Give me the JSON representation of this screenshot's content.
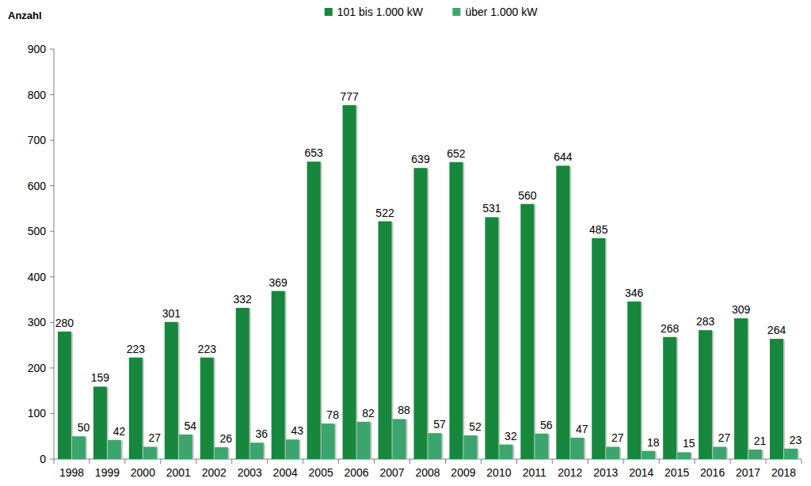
{
  "chart_data": {
    "type": "bar",
    "y_label": "Anzahl",
    "categories": [
      "1998",
      "1999",
      "2000",
      "2001",
      "2002",
      "2003",
      "2004",
      "2005",
      "2006",
      "2007",
      "2008",
      "2009",
      "2010",
      "2011",
      "2012",
      "2013",
      "2014",
      "2015",
      "2016",
      "2017",
      "2018"
    ],
    "series": [
      {
        "name": "101 bis 1.000 kW",
        "color": "#17873d",
        "values": [
          280,
          159,
          223,
          301,
          223,
          332,
          369,
          653,
          777,
          522,
          639,
          652,
          531,
          560,
          644,
          485,
          346,
          268,
          283,
          309,
          264
        ]
      },
      {
        "name": "über 1.000 kW",
        "color": "#3ca56d",
        "values": [
          50,
          42,
          27,
          54,
          26,
          36,
          43,
          78,
          82,
          88,
          57,
          52,
          32,
          56,
          47,
          27,
          18,
          15,
          27,
          21,
          23
        ]
      }
    ],
    "ylim": [
      0,
      900
    ],
    "yticks": [
      0,
      100,
      200,
      300,
      400,
      500,
      600,
      700,
      800,
      900
    ],
    "grid": false,
    "legend": "top",
    "data_labels": true
  }
}
